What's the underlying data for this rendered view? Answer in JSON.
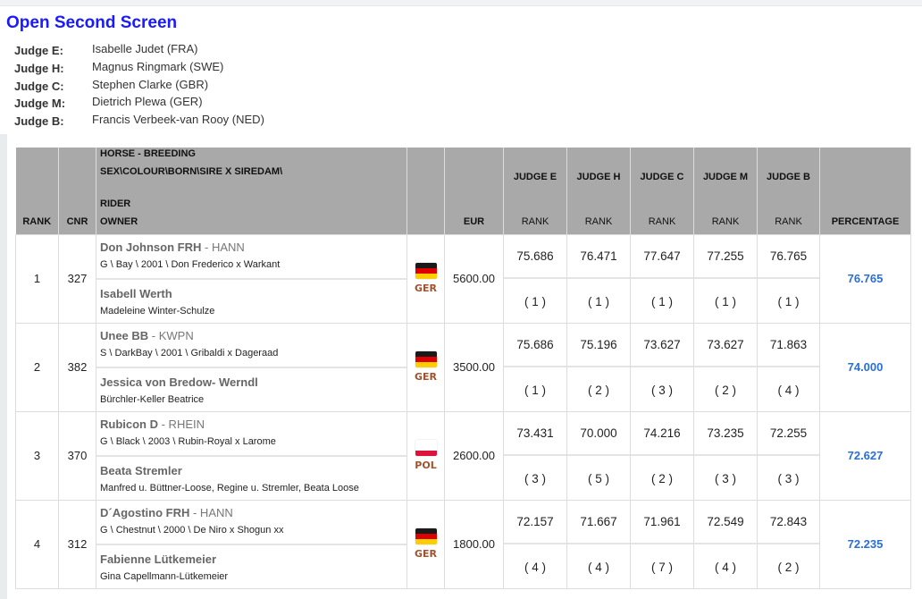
{
  "title": "Open Second Screen",
  "judges": [
    {
      "label": "Judge E:",
      "name": "Isabelle Judet (FRA)"
    },
    {
      "label": "Judge H:",
      "name": "Magnus Ringmark (SWE)"
    },
    {
      "label": "Judge C:",
      "name": "Stephen Clarke (GBR)"
    },
    {
      "label": "Judge M:",
      "name": "Dietrich Plewa (GER)"
    },
    {
      "label": "Judge B:",
      "name": "Francis Verbeek-van Rooy (NED)"
    }
  ],
  "headers": {
    "rank": "RANK",
    "cnr": "CNR",
    "horse1": "HORSE - BREEDING",
    "horse2": "SEX\\COLOUR\\BORN\\SIRE X SIREDAM\\",
    "rider": "RIDER",
    "owner": "OWNER",
    "eur": "EUR",
    "judges": [
      "JUDGE E",
      "JUDGE H",
      "JUDGE C",
      "JUDGE M",
      "JUDGE B"
    ],
    "judge_sub": "RANK",
    "percentage": "PERCENTAGE"
  },
  "flags": {
    "GER": [
      "#1a1a1a",
      "#dd0000",
      "#ffce00"
    ],
    "POL": [
      "#ffffff",
      "#ffffff",
      "#dc143c"
    ]
  },
  "rows": [
    {
      "rank": "1",
      "cnr": "327",
      "horse": "Don Johnson FRH",
      "breed": " - HANN",
      "details": "G \\ Bay \\ 2001 \\ Don Frederico x Warkant",
      "rider": "Isabell  Werth",
      "owner": "Madeleine Winter-Schulze",
      "nation": "GER",
      "eur": "5600.00",
      "scores": [
        "75.686",
        "76.471",
        "77.647",
        "77.255",
        "76.765"
      ],
      "ranks": [
        "( 1 )",
        "( 1 )",
        "( 1 )",
        "( 1 )",
        "( 1 )"
      ],
      "percentage": "76.765"
    },
    {
      "rank": "2",
      "cnr": "382",
      "horse": "Unee BB",
      "breed": " - KWPN",
      "details": "S \\ DarkBay \\ 2001 \\ Gribaldi x Dageraad",
      "rider": "Jessica  von Bredow- Werndl",
      "owner": "Bürchler-Keller Beatrice",
      "nation": "GER",
      "eur": "3500.00",
      "scores": [
        "75.686",
        "75.196",
        "73.627",
        "73.627",
        "71.863"
      ],
      "ranks": [
        "( 1 )",
        "( 2 )",
        "( 3 )",
        "( 2 )",
        "( 4 )"
      ],
      "percentage": "74.000"
    },
    {
      "rank": "3",
      "cnr": "370",
      "horse": "Rubicon D",
      "breed": " - RHEIN",
      "details": "G \\ Black \\ 2003 \\ Rubin-Royal x Larome",
      "rider": "Beata  Stremler",
      "owner": "Manfred u. Büttner-Loose, Regine u. Stremler, Beata Loose",
      "nation": "POL",
      "eur": "2600.00",
      "scores": [
        "73.431",
        "70.000",
        "74.216",
        "73.235",
        "72.255"
      ],
      "ranks": [
        "( 3 )",
        "( 5 )",
        "( 2 )",
        "( 3 )",
        "( 3 )"
      ],
      "percentage": "72.627"
    },
    {
      "rank": "4",
      "cnr": "312",
      "horse": "D´Agostino FRH",
      "breed": " - HANN",
      "details": "G \\ Chestnut \\ 2000 \\ De Niro x Shogun xx",
      "rider": "Fabienne  Lütkemeier",
      "owner": "Gina Capellmann-Lütkemeier",
      "nation": "GER",
      "eur": "1800.00",
      "scores": [
        "72.157",
        "71.667",
        "71.961",
        "72.549",
        "72.843"
      ],
      "ranks": [
        "( 4 )",
        "( 4 )",
        "( 7 )",
        "( 4 )",
        "( 2 )"
      ],
      "percentage": "72.235"
    }
  ]
}
